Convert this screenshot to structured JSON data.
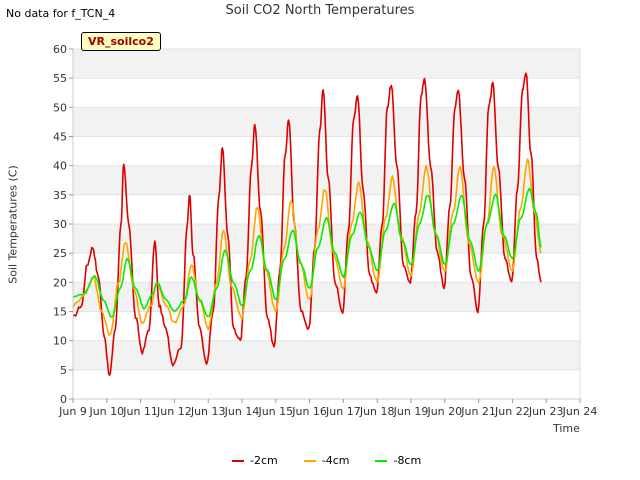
{
  "note": "No data for f_TCN_4",
  "badge": "VR_soilco2",
  "chart_data": {
    "type": "line",
    "title": "Soil CO2 North Temperatures",
    "xlabel": "Time",
    "ylabel": "Soil Temperatures (C)",
    "xlim": [
      "Jun 9",
      "Jun 24"
    ],
    "ylim": [
      0,
      60
    ],
    "x_ticks": [
      "Jun 9",
      "Jun 10",
      "Jun 11",
      "Jun 12",
      "Jun 13",
      "Jun 14",
      "Jun 15",
      "Jun 16",
      "Jun 17",
      "Jun 18",
      "Jun 19",
      "Jun 20",
      "Jun 21",
      "Jun 22",
      "Jun 23",
      "Jun 24"
    ],
    "y_ticks": [
      0,
      5,
      10,
      15,
      20,
      25,
      30,
      35,
      40,
      45,
      50,
      55,
      60
    ],
    "grid": "alternating horizontal bands",
    "legend_position": "bottom",
    "series": [
      {
        "name": "-2cm",
        "color": "#dd0000",
        "points": [
          [
            9.0,
            14
          ],
          [
            9.25,
            16
          ],
          [
            9.42,
            23
          ],
          [
            9.58,
            26
          ],
          [
            9.75,
            21
          ],
          [
            9.92,
            11
          ],
          [
            10.08,
            4
          ],
          [
            10.25,
            12
          ],
          [
            10.42,
            30
          ],
          [
            10.5,
            40
          ],
          [
            10.65,
            30
          ],
          [
            10.85,
            14
          ],
          [
            11.05,
            8
          ],
          [
            11.25,
            12
          ],
          [
            11.42,
            27
          ],
          [
            11.55,
            16
          ],
          [
            11.75,
            12
          ],
          [
            11.95,
            6
          ],
          [
            12.2,
            9
          ],
          [
            12.38,
            30
          ],
          [
            12.45,
            35
          ],
          [
            12.55,
            25
          ],
          [
            12.75,
            12
          ],
          [
            12.95,
            6
          ],
          [
            13.15,
            15
          ],
          [
            13.32,
            35
          ],
          [
            13.42,
            43
          ],
          [
            13.58,
            28
          ],
          [
            13.75,
            12
          ],
          [
            13.95,
            10
          ],
          [
            14.12,
            21
          ],
          [
            14.28,
            40
          ],
          [
            14.38,
            47
          ],
          [
            14.55,
            32
          ],
          [
            14.75,
            14
          ],
          [
            14.95,
            9
          ],
          [
            15.12,
            22
          ],
          [
            15.28,
            42
          ],
          [
            15.38,
            48
          ],
          [
            15.55,
            30
          ],
          [
            15.75,
            15
          ],
          [
            15.98,
            12
          ],
          [
            16.15,
            26
          ],
          [
            16.3,
            46
          ],
          [
            16.4,
            53
          ],
          [
            16.55,
            38
          ],
          [
            16.75,
            20
          ],
          [
            16.98,
            15
          ],
          [
            17.15,
            29
          ],
          [
            17.3,
            48
          ],
          [
            17.42,
            52
          ],
          [
            17.58,
            36
          ],
          [
            17.78,
            21
          ],
          [
            17.98,
            18
          ],
          [
            18.15,
            30
          ],
          [
            18.3,
            50
          ],
          [
            18.42,
            54
          ],
          [
            18.58,
            40
          ],
          [
            18.78,
            23
          ],
          [
            18.98,
            20
          ],
          [
            19.15,
            32
          ],
          [
            19.3,
            52
          ],
          [
            19.4,
            55
          ],
          [
            19.58,
            40
          ],
          [
            19.78,
            25
          ],
          [
            19.98,
            19
          ],
          [
            20.15,
            33
          ],
          [
            20.3,
            50
          ],
          [
            20.4,
            53
          ],
          [
            20.58,
            38
          ],
          [
            20.78,
            21
          ],
          [
            20.98,
            15
          ],
          [
            21.15,
            30
          ],
          [
            21.3,
            50
          ],
          [
            21.42,
            54
          ],
          [
            21.58,
            40
          ],
          [
            21.78,
            24
          ],
          [
            21.98,
            20
          ],
          [
            22.15,
            36
          ],
          [
            22.3,
            53
          ],
          [
            22.4,
            56
          ],
          [
            22.55,
            42
          ],
          [
            22.72,
            24
          ],
          [
            22.85,
            20
          ]
        ]
      },
      {
        "name": "-4cm",
        "color": "#ffa500",
        "points": [
          [
            9.0,
            16
          ],
          [
            9.35,
            18
          ],
          [
            9.6,
            21
          ],
          [
            9.85,
            15
          ],
          [
            10.1,
            11
          ],
          [
            10.35,
            20
          ],
          [
            10.55,
            27
          ],
          [
            10.8,
            19
          ],
          [
            11.05,
            13
          ],
          [
            11.3,
            16
          ],
          [
            11.48,
            20
          ],
          [
            11.75,
            16
          ],
          [
            12.0,
            13
          ],
          [
            12.28,
            16
          ],
          [
            12.5,
            23
          ],
          [
            12.75,
            17
          ],
          [
            13.0,
            12
          ],
          [
            13.25,
            20
          ],
          [
            13.45,
            29
          ],
          [
            13.7,
            19
          ],
          [
            14.0,
            14
          ],
          [
            14.25,
            24
          ],
          [
            14.45,
            33
          ],
          [
            14.7,
            22
          ],
          [
            15.0,
            15
          ],
          [
            15.25,
            26
          ],
          [
            15.45,
            34
          ],
          [
            15.7,
            24
          ],
          [
            16.0,
            17
          ],
          [
            16.25,
            29
          ],
          [
            16.45,
            36
          ],
          [
            16.7,
            25
          ],
          [
            17.0,
            19
          ],
          [
            17.25,
            30
          ],
          [
            17.45,
            37
          ],
          [
            17.7,
            27
          ],
          [
            18.0,
            20
          ],
          [
            18.25,
            31
          ],
          [
            18.45,
            38
          ],
          [
            18.7,
            28
          ],
          [
            19.0,
            21
          ],
          [
            19.25,
            32
          ],
          [
            19.45,
            40
          ],
          [
            19.7,
            29
          ],
          [
            20.0,
            22
          ],
          [
            20.25,
            32
          ],
          [
            20.45,
            40
          ],
          [
            20.7,
            27
          ],
          [
            21.0,
            20
          ],
          [
            21.25,
            30
          ],
          [
            21.45,
            40
          ],
          [
            21.7,
            28
          ],
          [
            22.0,
            22
          ],
          [
            22.25,
            33
          ],
          [
            22.45,
            41
          ],
          [
            22.65,
            32
          ],
          [
            22.85,
            25
          ]
        ]
      },
      {
        "name": "-8cm",
        "color": "#00ee00",
        "points": [
          [
            9.0,
            17.5
          ],
          [
            9.3,
            18
          ],
          [
            9.65,
            21
          ],
          [
            9.9,
            17
          ],
          [
            10.15,
            14
          ],
          [
            10.4,
            19
          ],
          [
            10.6,
            24
          ],
          [
            10.85,
            19
          ],
          [
            11.1,
            15.5
          ],
          [
            11.35,
            18
          ],
          [
            11.5,
            20
          ],
          [
            11.75,
            17
          ],
          [
            12.0,
            15
          ],
          [
            12.3,
            17
          ],
          [
            12.5,
            21
          ],
          [
            12.75,
            17
          ],
          [
            13.0,
            14
          ],
          [
            13.25,
            19
          ],
          [
            13.5,
            25.5
          ],
          [
            13.75,
            20
          ],
          [
            14.0,
            16
          ],
          [
            14.25,
            22
          ],
          [
            14.5,
            28
          ],
          [
            14.75,
            22
          ],
          [
            15.0,
            17
          ],
          [
            15.25,
            24
          ],
          [
            15.5,
            29
          ],
          [
            15.75,
            23
          ],
          [
            16.0,
            19
          ],
          [
            16.25,
            26
          ],
          [
            16.5,
            31
          ],
          [
            16.75,
            25
          ],
          [
            17.0,
            21
          ],
          [
            17.25,
            28
          ],
          [
            17.5,
            32
          ],
          [
            17.75,
            26
          ],
          [
            18.0,
            22
          ],
          [
            18.25,
            29
          ],
          [
            18.5,
            33.5
          ],
          [
            18.75,
            27
          ],
          [
            19.0,
            23
          ],
          [
            19.25,
            30
          ],
          [
            19.5,
            35
          ],
          [
            19.75,
            28
          ],
          [
            20.0,
            23
          ],
          [
            20.25,
            30
          ],
          [
            20.5,
            35
          ],
          [
            20.75,
            27
          ],
          [
            21.0,
            22
          ],
          [
            21.25,
            30
          ],
          [
            21.5,
            35
          ],
          [
            21.75,
            28
          ],
          [
            22.0,
            24
          ],
          [
            22.25,
            31
          ],
          [
            22.5,
            36
          ],
          [
            22.7,
            32
          ],
          [
            22.85,
            26
          ]
        ]
      }
    ]
  }
}
